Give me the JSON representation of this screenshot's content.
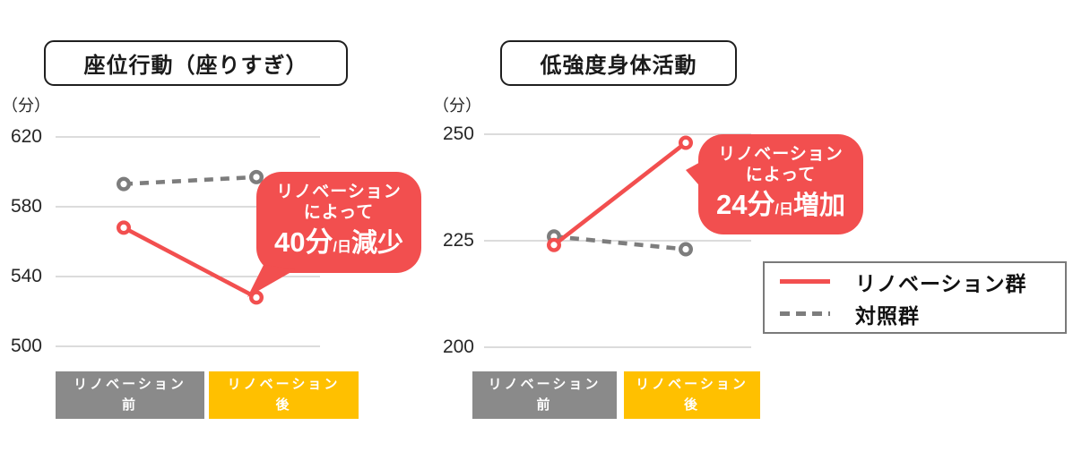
{
  "colors": {
    "renovation_line": "#f24f4f",
    "control_line": "#7d7d7d",
    "bubble": "#f24f4f",
    "pre_box": "#8a8a8a",
    "post_box": "#ffc000",
    "gridline": "#c6c6c6"
  },
  "legend": {
    "items": [
      {
        "label": "リノベーション群",
        "style": "solid-red"
      },
      {
        "label": "対照群",
        "style": "dashed-gray"
      }
    ]
  },
  "chart_data": [
    {
      "type": "line",
      "title": "座位行動（座りすぎ）",
      "unit_label": "（分）",
      "categories": [
        "リノベーション前",
        "リノベーション後"
      ],
      "x_box_labels": [
        {
          "top": "リノベーション",
          "bottom": "前"
        },
        {
          "top": "リノベーション",
          "bottom": "後"
        }
      ],
      "series": [
        {
          "name": "リノベーション群",
          "style": "solid",
          "color": "#f24f4f",
          "values": [
            568,
            528
          ]
        },
        {
          "name": "対照群",
          "style": "dashed",
          "color": "#7d7d7d",
          "values": [
            593,
            597
          ]
        }
      ],
      "ylim": [
        500,
        620
      ],
      "yticks": [
        620,
        580,
        540,
        500
      ],
      "grid": true,
      "annotation": {
        "line1": "リノベーション",
        "line2": "によって",
        "amount": "40分",
        "per_day": "/日",
        "direction": "減少"
      }
    },
    {
      "type": "line",
      "title": "低強度身体活動",
      "unit_label": "（分）",
      "categories": [
        "リノベーション前",
        "リノベーション後"
      ],
      "x_box_labels": [
        {
          "top": "リノベーション",
          "bottom": "前"
        },
        {
          "top": "リノベーション",
          "bottom": "後"
        }
      ],
      "series": [
        {
          "name": "リノベーション群",
          "style": "solid",
          "color": "#f24f4f",
          "values": [
            224,
            248
          ]
        },
        {
          "name": "対照群",
          "style": "dashed",
          "color": "#7d7d7d",
          "values": [
            226,
            223
          ]
        }
      ],
      "ylim": [
        200,
        250
      ],
      "yticks": [
        250,
        225,
        200
      ],
      "grid": true,
      "annotation": {
        "line1": "リノベーション",
        "line2": "によって",
        "amount": "24分",
        "per_day": "/日",
        "direction": "増加"
      }
    }
  ]
}
